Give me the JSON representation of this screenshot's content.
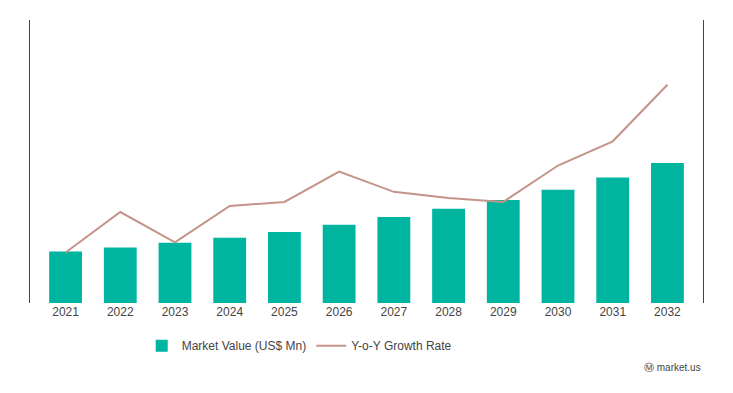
{
  "chart_data": {
    "type": "bar",
    "categories": [
      "2021",
      "2022",
      "2023",
      "2024",
      "2025",
      "2026",
      "2027",
      "2028",
      "2029",
      "2030",
      "2031",
      "2032"
    ],
    "series": [
      {
        "name": "Market Value (US$ Mn)",
        "type": "bar",
        "color": "#00B5A0",
        "values": [
          100,
          108,
          117,
          127,
          138,
          152,
          167,
          183,
          200,
          220,
          244,
          272
        ]
      },
      {
        "name": "Y-o-Y Growth Rate",
        "type": "line",
        "axis": "y2",
        "color": "#C4948A",
        "values": [
          6.5,
          8.5,
          7.0,
          8.8,
          9.0,
          10.5,
          9.5,
          9.2,
          9.0,
          10.8,
          12.0,
          14.8
        ]
      }
    ],
    "ylim": [
      0,
      550
    ],
    "yticks": [],
    "y2lim": [
      4.0,
      18.0
    ],
    "y2ticks": [],
    "tick_labels": "x",
    "grid": false,
    "legend": "bottom",
    "annotations": [
      "Ⓜ market.us"
    ]
  }
}
